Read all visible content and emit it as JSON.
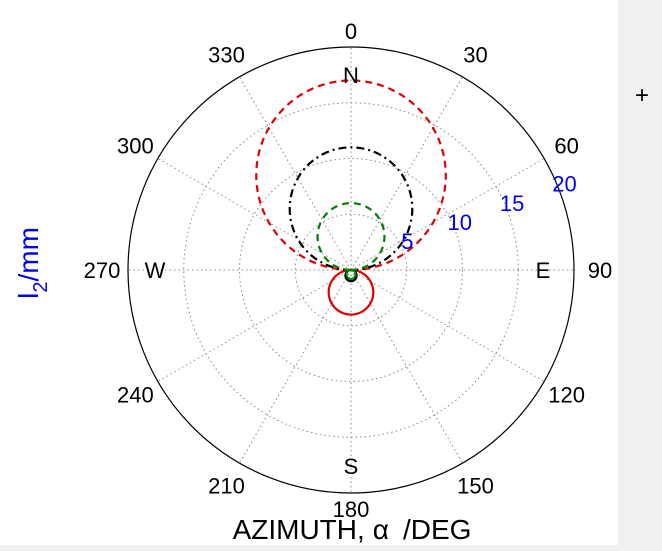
{
  "chart_data": {
    "type": "polar",
    "title": "",
    "xlabel_main": "AZIMUTH,",
    "xlabel_symbol": "α",
    "xlabel_unit": "/DEG",
    "ylabel_main": "l",
    "ylabel_sub": "2",
    "ylabel_unit": "/mm",
    "r_max": 20,
    "r_ticks": [
      "5",
      "10",
      "15",
      "20"
    ],
    "angle_labels": [
      "0",
      "30",
      "60",
      "90",
      "120",
      "150",
      "180",
      "210",
      "240",
      "270",
      "300",
      "330"
    ],
    "compass": {
      "n": "N",
      "e": "E",
      "s": "S",
      "w": "W"
    },
    "marker_label": "+",
    "grid": true,
    "colors": {
      "red": "#e00000",
      "black": "#000000",
      "green": "#008000",
      "tick_blue": "#0000ee",
      "grid": "#888888"
    },
    "series": [
      {
        "color": "red",
        "style": "dashed",
        "lobe": "north",
        "peak_r": 17.0,
        "width": 2.2
      },
      {
        "color": "red",
        "style": "solid",
        "lobe": "south",
        "peak_r": 4.0,
        "width": 2.2
      },
      {
        "color": "black",
        "style": "dashdot",
        "lobe": "north",
        "peak_r": 11.0,
        "width": 2.2
      },
      {
        "color": "black",
        "style": "solid",
        "lobe": "south",
        "peak_r": 1.0,
        "width": 2.2
      },
      {
        "color": "green",
        "style": "dashed",
        "lobe": "north",
        "peak_r": 6.0,
        "width": 2.2
      },
      {
        "color": "green",
        "style": "solid",
        "lobe": "south",
        "peak_r": 0.8,
        "width": 2.0
      }
    ]
  }
}
